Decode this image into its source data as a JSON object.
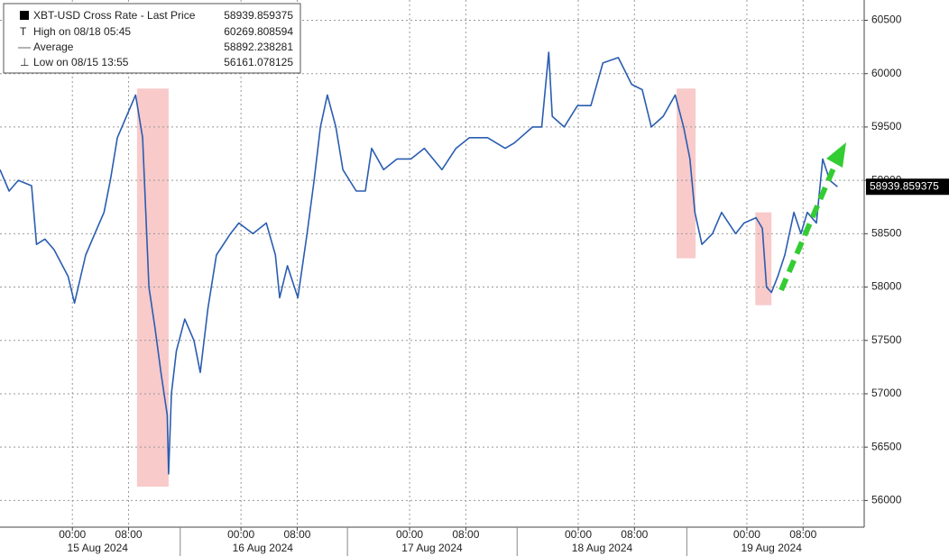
{
  "chart_data": {
    "type": "line",
    "legend": [
      {
        "label": "XBT-USD Cross Rate - Last Price",
        "value": 58939.859375
      },
      {
        "label": "High on 08/18 05:45",
        "value": 60269.808594
      },
      {
        "label": "Average",
        "value": 58892.238281
      },
      {
        "label": "Low on 08/15 13:55",
        "value": 56161.078125
      }
    ],
    "series": [
      {
        "name": "XBT-USD Cross Rate - Last Price",
        "color": "#2a5db0",
        "x": [
          -10.3,
          -9.0,
          -7.7,
          -5.8,
          -5.1,
          -3.9,
          -2.6,
          -0.6,
          0.3,
          1.9,
          3.2,
          4.5,
          5.4,
          6.4,
          7.7,
          9.0,
          10.0,
          10.9,
          11.8,
          12.6,
          13.5,
          13.7,
          14.1,
          14.8,
          16.0,
          17.3,
          18.2,
          19.3,
          20.5,
          22.5,
          23.7,
          25.7,
          27.6,
          28.9,
          29.5,
          30.6,
          32.1,
          33.4,
          34.4,
          35.3,
          36.3,
          37.5,
          38.5,
          40.4,
          41.7,
          42.6,
          44.3,
          46.2,
          48.2,
          50.1,
          52.6,
          54.6,
          56.5,
          59.1,
          61.6,
          62.9,
          65.5,
          66.8,
          67.8,
          68.3,
          70.0,
          71.9,
          73.8,
          75.5,
          77.7,
          79.6,
          81.1,
          82.4,
          84.1,
          85.8,
          87.0,
          87.9,
          88.6,
          89.6,
          91.1,
          92.4,
          94.4,
          95.6,
          97.3,
          98.2,
          98.8,
          99.5,
          100.4,
          101.4,
          102.7,
          103.7,
          104.6,
          105.9,
          106.8,
          107.8,
          108.9
        ],
        "values": [
          59100,
          58900,
          59000,
          58950,
          58400,
          58450,
          58350,
          58100,
          57850,
          58300,
          58500,
          58700,
          59000,
          59400,
          59600,
          59800,
          59400,
          58000,
          57600,
          57200,
          56800,
          56250,
          57000,
          57400,
          57700,
          57500,
          57200,
          57800,
          58300,
          58500,
          58600,
          58500,
          58600,
          58300,
          57900,
          58200,
          57900,
          58500,
          59000,
          59500,
          59800,
          59500,
          59100,
          58900,
          58900,
          59300,
          59100,
          59200,
          59200,
          59300,
          59100,
          59300,
          59400,
          59400,
          59300,
          59350,
          59500,
          59500,
          60200,
          59600,
          59500,
          59700,
          59700,
          60100,
          60150,
          59900,
          59850,
          59500,
          59600,
          59800,
          59500,
          59200,
          58700,
          58400,
          58500,
          58700,
          58500,
          58600,
          58650,
          58550,
          58000,
          57950,
          58100,
          58300,
          58700,
          58500,
          58700,
          58600,
          59200,
          59000,
          58940
        ]
      }
    ],
    "highlights": [
      {
        "x": [
          9.2,
          13.7
        ],
        "y": [
          56130,
          59860
        ]
      },
      {
        "x": [
          86.0,
          88.7
        ],
        "y": [
          58270,
          59860
        ]
      },
      {
        "x": [
          97.2,
          99.5
        ],
        "y": [
          57830,
          58700
        ]
      }
    ],
    "xlim": [
      -10.3,
      112.7
    ],
    "ylim": [
      55750,
      60690
    ],
    "yticks": [
      56000,
      56500,
      57000,
      57500,
      58000,
      58500,
      59000,
      59500,
      60000,
      60500
    ],
    "xticks": [
      {
        "value": 0,
        "label": "00:00"
      },
      {
        "value": 8,
        "label": "08:00"
      },
      {
        "value": 24,
        "label": "00:00"
      },
      {
        "value": 32,
        "label": "08:00"
      },
      {
        "value": 48,
        "label": "00:00"
      },
      {
        "value": 56,
        "label": "08:00"
      },
      {
        "value": 72,
        "label": "00:00"
      },
      {
        "value": 80,
        "label": "08:00"
      },
      {
        "value": 96,
        "label": "00:00"
      },
      {
        "value": 104,
        "label": "08:00"
      }
    ],
    "day_labels": [
      {
        "value": 3.6,
        "label": "15 Aug 2024"
      },
      {
        "value": 27.1,
        "label": "16 Aug 2024"
      },
      {
        "value": 51.2,
        "label": "17 Aug 2024"
      },
      {
        "value": 75.4,
        "label": "18 Aug 2024"
      },
      {
        "value": 99.5,
        "label": "19 Aug 2024"
      }
    ],
    "grid": true
  }
}
